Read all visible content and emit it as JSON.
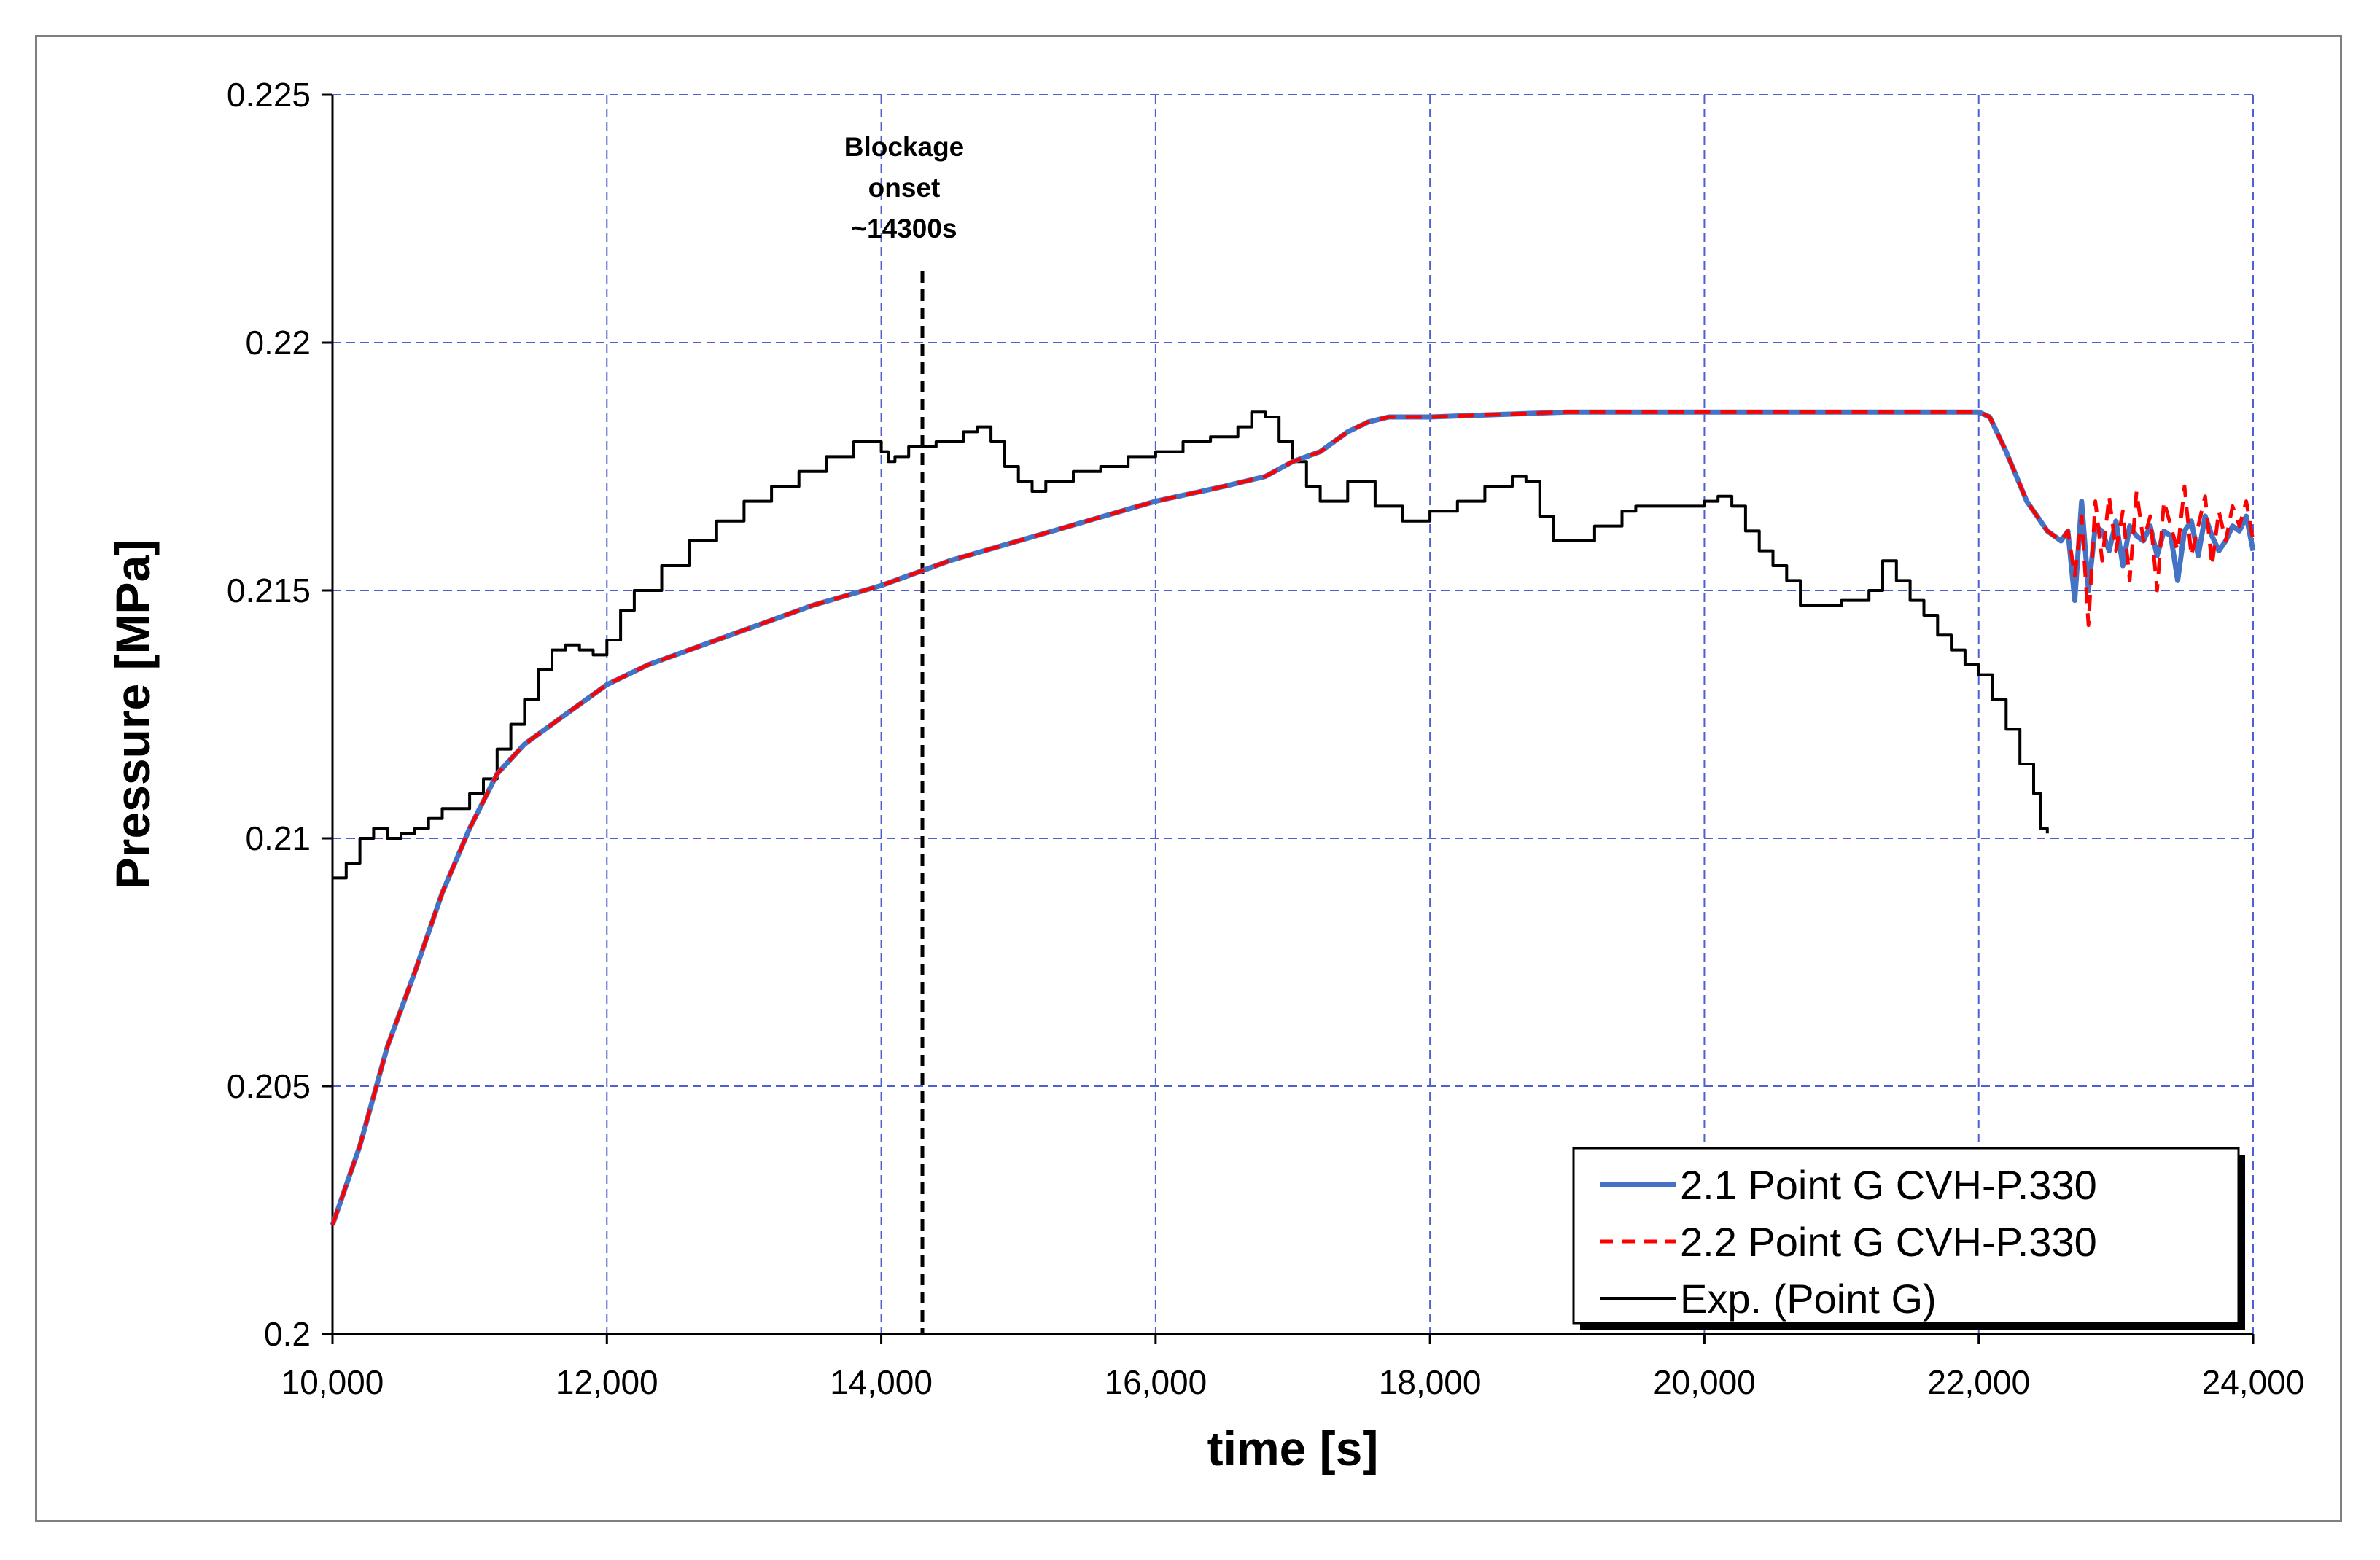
{
  "chart_data": {
    "type": "line",
    "xlabel": "time [s]",
    "ylabel": "Pressure [MPa]",
    "xlim": [
      10000,
      24000
    ],
    "ylim": [
      0.2,
      0.225
    ],
    "x_ticks": [
      10000,
      12000,
      14000,
      16000,
      18000,
      20000,
      22000,
      24000
    ],
    "x_tick_labels": [
      "10,000",
      "12,000",
      "14,000",
      "16,000",
      "18,000",
      "20,000",
      "22,000",
      "24,000"
    ],
    "y_ticks": [
      0.2,
      0.205,
      0.21,
      0.215,
      0.22,
      0.225
    ],
    "y_tick_labels": [
      "0.2",
      "0.205",
      "0.21",
      "0.215",
      "0.22",
      "0.225"
    ],
    "grid": true,
    "legend_position": "bottom-right",
    "annotation": {
      "x": 14300,
      "lines": [
        "Blockage",
        "onset",
        "~14300s"
      ]
    },
    "series": [
      {
        "name": "2.1 Point G CVH-P.330",
        "color": "#4472c4",
        "style": "solid",
        "x": [
          10000,
          10200,
          10400,
          10600,
          10800,
          11000,
          11200,
          11400,
          11600,
          11800,
          12000,
          12300,
          12600,
          13000,
          13500,
          14000,
          14500,
          15000,
          15500,
          16000,
          16500,
          16800,
          17000,
          17200,
          17400,
          17550,
          17700,
          18000,
          19000,
          20000,
          21000,
          22000,
          22080,
          22200,
          22350,
          22500,
          22600,
          22650,
          22700,
          22750,
          22800,
          22850,
          22900,
          22950,
          23000,
          23050,
          23100,
          23150,
          23200,
          23250,
          23300,
          23350,
          23400,
          23450,
          23500,
          23550,
          23600,
          23650,
          23700,
          23750,
          23800,
          23850,
          23900,
          23950,
          24000
        ],
        "values": [
          0.2022,
          0.2038,
          0.2058,
          0.2073,
          0.2089,
          0.2102,
          0.2113,
          0.2119,
          0.2123,
          0.2127,
          0.2131,
          0.2135,
          0.2138,
          0.2142,
          0.2147,
          0.2151,
          0.2156,
          0.216,
          0.2164,
          0.2168,
          0.2171,
          0.2173,
          0.2176,
          0.2178,
          0.2182,
          0.2184,
          0.2185,
          0.2185,
          0.2186,
          0.2186,
          0.2186,
          0.2186,
          0.2185,
          0.2178,
          0.2168,
          0.2162,
          0.216,
          0.2162,
          0.2148,
          0.2168,
          0.215,
          0.2163,
          0.2162,
          0.2158,
          0.2164,
          0.2155,
          0.2163,
          0.2161,
          0.216,
          0.2163,
          0.2157,
          0.2162,
          0.2161,
          0.2152,
          0.2162,
          0.2164,
          0.2157,
          0.2165,
          0.2161,
          0.2158,
          0.216,
          0.2163,
          0.2162,
          0.2165,
          0.2158
        ]
      },
      {
        "name": "2.2 Point G CVH-P.330",
        "color": "#ff0000",
        "style": "dashed",
        "x": [
          10000,
          10200,
          10400,
          10600,
          10800,
          11000,
          11200,
          11400,
          11600,
          11800,
          12000,
          12300,
          12600,
          13000,
          13500,
          14000,
          14500,
          15000,
          15500,
          16000,
          16500,
          16800,
          17000,
          17200,
          17400,
          17550,
          17700,
          18000,
          19000,
          20000,
          21000,
          22000,
          22080,
          22200,
          22350,
          22500,
          22600,
          22650,
          22700,
          22750,
          22800,
          22850,
          22900,
          22950,
          23000,
          23050,
          23100,
          23150,
          23200,
          23250,
          23300,
          23350,
          23400,
          23450,
          23500,
          23550,
          23600,
          23650,
          23700,
          23750,
          23800,
          23850,
          23900,
          23950,
          24000
        ],
        "values": [
          0.2022,
          0.2038,
          0.2058,
          0.2073,
          0.2089,
          0.2102,
          0.2113,
          0.2119,
          0.2123,
          0.2127,
          0.2131,
          0.2135,
          0.2138,
          0.2142,
          0.2147,
          0.2151,
          0.2156,
          0.216,
          0.2164,
          0.2168,
          0.2171,
          0.2173,
          0.2176,
          0.2178,
          0.2182,
          0.2184,
          0.2185,
          0.2185,
          0.2186,
          0.2186,
          0.2186,
          0.2186,
          0.2185,
          0.2178,
          0.2168,
          0.2162,
          0.216,
          0.2162,
          0.2153,
          0.2165,
          0.2143,
          0.2168,
          0.2156,
          0.2169,
          0.2158,
          0.2166,
          0.2152,
          0.217,
          0.216,
          0.2165,
          0.215,
          0.2168,
          0.2163,
          0.2158,
          0.2171,
          0.2157,
          0.2163,
          0.2169,
          0.2155,
          0.2166,
          0.216,
          0.2167,
          0.2163,
          0.2168,
          0.216
        ]
      },
      {
        "name": "Exp. (Point G)",
        "color": "#000000",
        "style": "solid",
        "x": [
          10000,
          10100,
          10200,
          10300,
          10400,
          10500,
          10600,
          10700,
          10800,
          11000,
          11100,
          11200,
          11300,
          11400,
          11500,
          11600,
          11700,
          11800,
          11900,
          12000,
          12100,
          12200,
          12400,
          12600,
          12800,
          13000,
          13200,
          13400,
          13600,
          13800,
          13900,
          14000,
          14050,
          14100,
          14200,
          14400,
          14600,
          14700,
          14800,
          14900,
          15000,
          15100,
          15200,
          15400,
          15600,
          15800,
          16000,
          16200,
          16400,
          16600,
          16700,
          16800,
          16900,
          17000,
          17100,
          17200,
          17400,
          17600,
          17800,
          18000,
          18200,
          18400,
          18600,
          18700,
          18800,
          18900,
          19000,
          19200,
          19400,
          19500,
          19600,
          19800,
          20000,
          20100,
          20200,
          20300,
          20400,
          20500,
          20600,
          20700,
          20800,
          21000,
          21200,
          21300,
          21400,
          21500,
          21600,
          21700,
          21800,
          21900,
          22000,
          22100,
          22200,
          22300,
          22400,
          22450,
          22500
        ],
        "values": [
          0.2092,
          0.2095,
          0.21,
          0.2102,
          0.21,
          0.2101,
          0.2102,
          0.2104,
          0.2106,
          0.2109,
          0.2112,
          0.2118,
          0.2123,
          0.2128,
          0.2134,
          0.2138,
          0.2139,
          0.2138,
          0.2137,
          0.214,
          0.2146,
          0.215,
          0.2155,
          0.216,
          0.2164,
          0.2168,
          0.2171,
          0.2174,
          0.2177,
          0.218,
          0.218,
          0.2178,
          0.2176,
          0.2177,
          0.2179,
          0.218,
          0.2182,
          0.2183,
          0.218,
          0.2175,
          0.2172,
          0.217,
          0.2172,
          0.2174,
          0.2175,
          0.2177,
          0.2178,
          0.218,
          0.2181,
          0.2183,
          0.2186,
          0.2185,
          0.218,
          0.2176,
          0.2171,
          0.2168,
          0.2172,
          0.2167,
          0.2164,
          0.2166,
          0.2168,
          0.2171,
          0.2173,
          0.2172,
          0.2165,
          0.216,
          0.216,
          0.2163,
          0.2166,
          0.2167,
          0.2167,
          0.2167,
          0.2168,
          0.2169,
          0.2167,
          0.2162,
          0.2158,
          0.2155,
          0.2152,
          0.2147,
          0.2147,
          0.2148,
          0.215,
          0.2156,
          0.2152,
          0.2148,
          0.2145,
          0.2141,
          0.2138,
          0.2135,
          0.2133,
          0.2128,
          0.2122,
          0.2115,
          0.2109,
          0.2102,
          0.2101
        ]
      }
    ]
  }
}
